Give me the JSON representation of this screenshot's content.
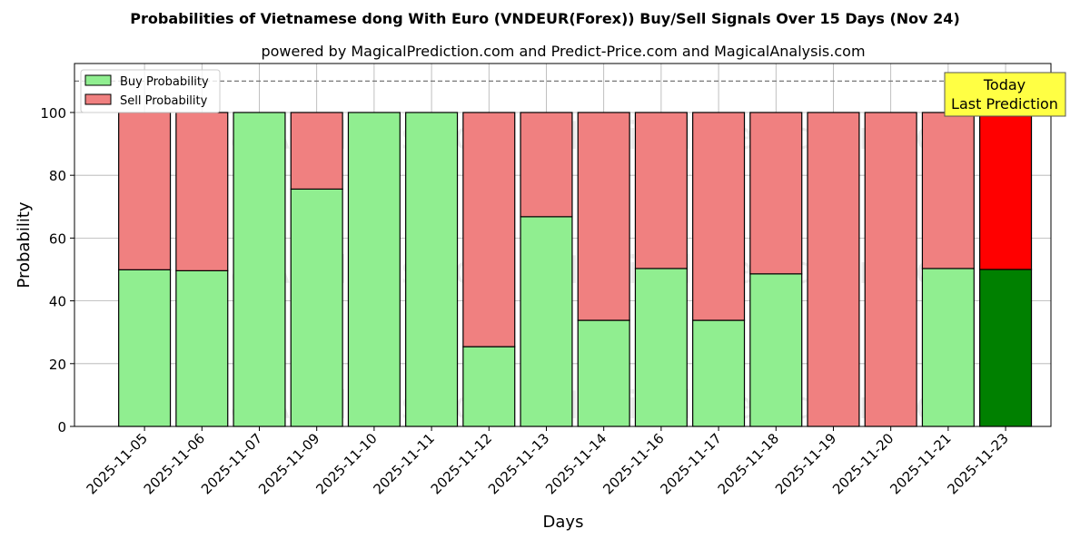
{
  "chart_data": {
    "type": "bar",
    "stacked": true,
    "title": "Probabilities of Vietnamese dong With Euro (VNDEUR(Forex)) Buy/Sell Signals Over 15 Days (Nov 24)",
    "subtitle": "powered by MagicalPrediction.com and Predict-Price.com and MagicalAnalysis.com",
    "xlabel": "Days",
    "ylabel": "Probability",
    "ylim": [
      0,
      115.6
    ],
    "yticks": [
      0,
      20,
      40,
      60,
      80,
      100
    ],
    "grid": true,
    "legend_position": "top-left",
    "reference_line": 110,
    "categories": [
      "2025-11-05",
      "2025-11-06",
      "2025-11-07",
      "2025-11-09",
      "2025-11-10",
      "2025-11-11",
      "2025-11-12",
      "2025-11-13",
      "2025-11-14",
      "2025-11-16",
      "2025-11-17",
      "2025-11-18",
      "2025-11-19",
      "2025-11-20",
      "2025-11-21",
      "2025-11-23"
    ],
    "series": [
      {
        "name": "Buy Probability",
        "color": "#90ee90",
        "values": [
          49.9,
          49.6,
          100,
          75.6,
          100,
          100,
          25.4,
          66.8,
          33.8,
          50.3,
          33.8,
          48.6,
          0,
          0,
          50.3,
          50
        ]
      },
      {
        "name": "Sell Probability",
        "color": "#f08080",
        "values": [
          50.1,
          50.4,
          0,
          24.4,
          0,
          0,
          74.6,
          33.2,
          66.2,
          49.7,
          66.2,
          51.4,
          100,
          100,
          49.7,
          50
        ]
      }
    ],
    "highlight": {
      "index": 15,
      "buy_color": "#008000",
      "sell_color": "#ff0000"
    },
    "annotation": {
      "line1": "Today",
      "line2": "Last Prediction"
    },
    "watermarks": [
      "MagicalAnalysis.com",
      "MagicalPrediction.com"
    ]
  }
}
